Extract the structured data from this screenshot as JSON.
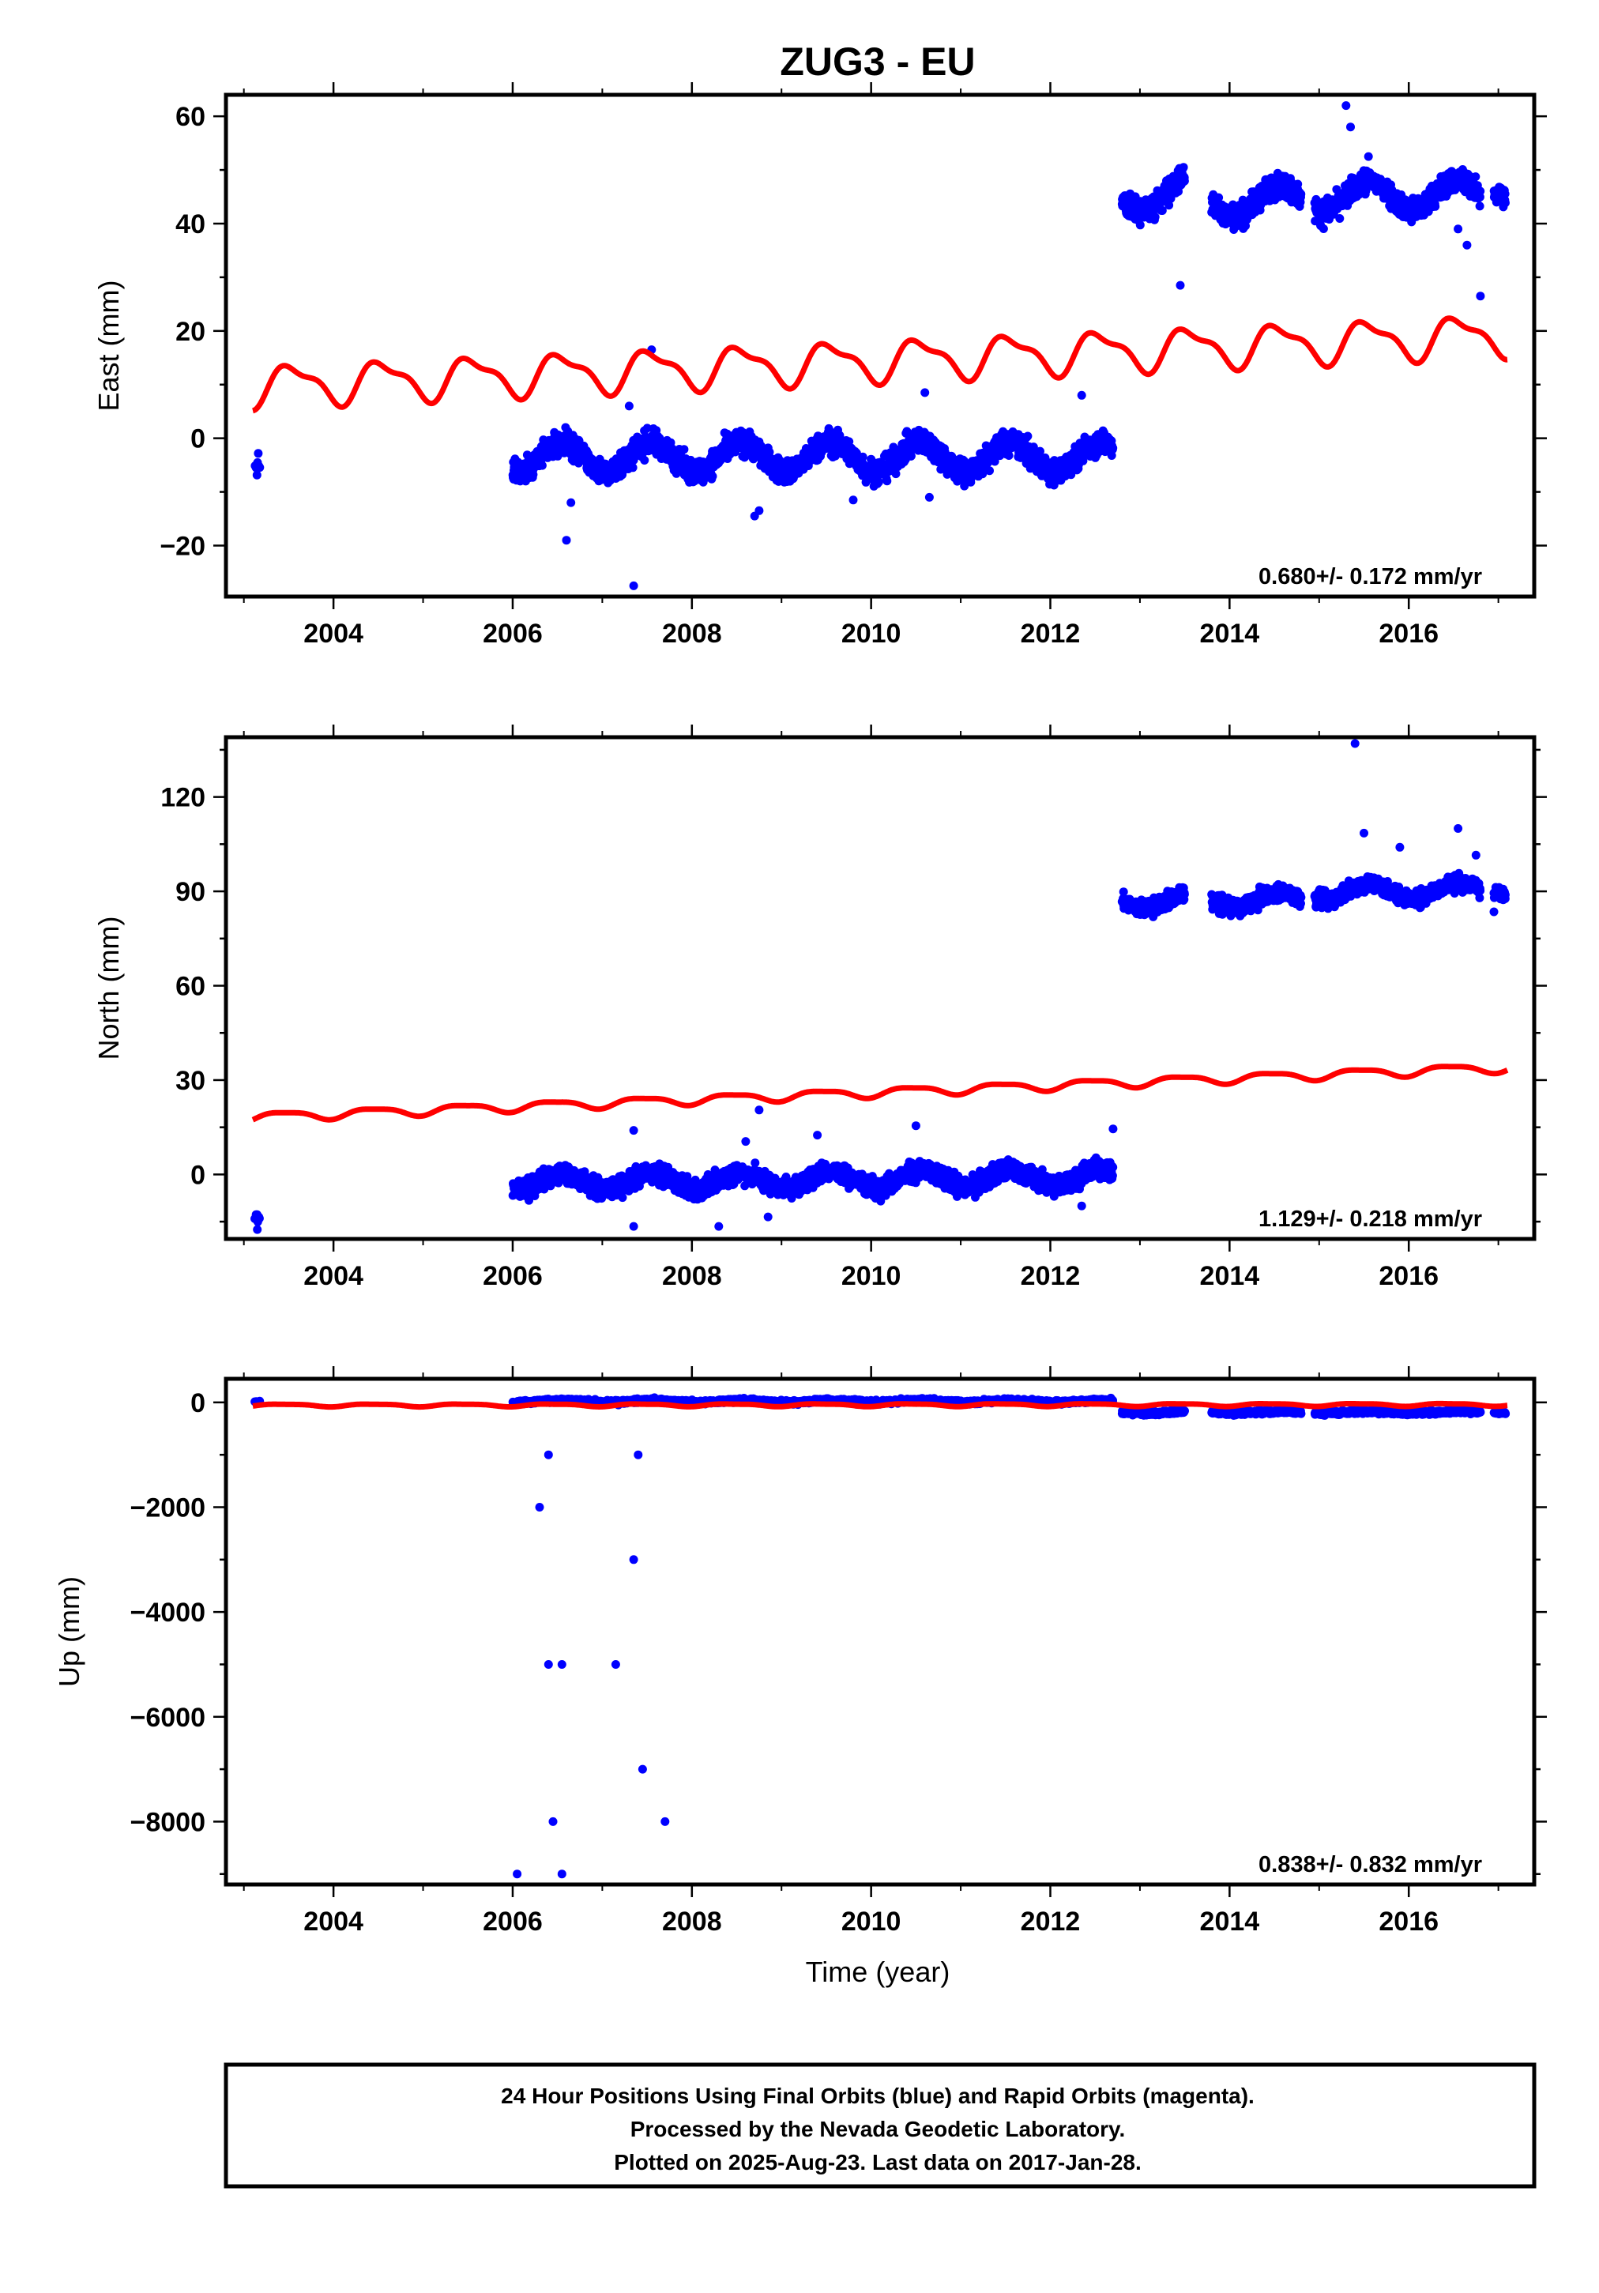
{
  "chart_data": {
    "title": "ZUG3 - EU",
    "xlabel": "Time (year)",
    "x_ticks": [
      2004,
      2006,
      2008,
      2010,
      2012,
      2014,
      2016
    ],
    "xlim": [
      2002.8,
      2017.4
    ],
    "colors": {
      "observations": "#0000ff",
      "model": "#ff0000"
    },
    "panels": [
      {
        "key": "east",
        "type": "scatter",
        "ylabel": "East (mm)",
        "ylim": [
          -29.5,
          64
        ],
        "yticks": [
          -20,
          0,
          20,
          40,
          60
        ],
        "rate_label": "0.680+/- 0.172 mm/yr",
        "model": {
          "start": 2003.1,
          "end": 2017.1,
          "y0": 9.7,
          "slope": 0.68,
          "annual_amp": 3.5,
          "annual_phase_year": 0.3,
          "semi_amp": 1.3,
          "semi_phase_year": 0.25,
          "jumps": []
        },
        "segments": [
          {
            "start": 2003.12,
            "end": 2003.18,
            "base": -4.3,
            "slope": 0,
            "amp": 1,
            "noise": 1.2,
            "count": 8
          },
          {
            "start": 2006.0,
            "end": 2012.7,
            "base": -3.5,
            "slope": 0,
            "amp": 2.8,
            "noise": 1.6,
            "count": 2200
          },
          {
            "start": 2012.8,
            "end": 2013.5,
            "base": 44,
            "slope": 3.5,
            "amp": 2.5,
            "noise": 1.6,
            "count": 260
          },
          {
            "start": 2013.8,
            "end": 2014.8,
            "base": 44,
            "slope": 0.5,
            "amp": 2.8,
            "noise": 1.6,
            "count": 330
          },
          {
            "start": 2014.95,
            "end": 2016.8,
            "base": 45,
            "slope": 0.3,
            "amp": 2.8,
            "noise": 1.6,
            "count": 600
          },
          {
            "start": 2016.95,
            "end": 2017.08,
            "base": 46.5,
            "slope": 0,
            "amp": 1,
            "noise": 1.4,
            "count": 40
          }
        ],
        "outliers": [
          [
            2006.6,
            -19
          ],
          [
            2007.35,
            -27.5
          ],
          [
            2007.55,
            16.5
          ],
          [
            2008.7,
            -14.5
          ],
          [
            2008.75,
            -13.5
          ],
          [
            2006.65,
            -12
          ],
          [
            2010.65,
            -11
          ],
          [
            2009.8,
            -11.5
          ],
          [
            2013.45,
            28.5
          ],
          [
            2015.3,
            62
          ],
          [
            2015.35,
            58
          ],
          [
            2016.65,
            36
          ],
          [
            2016.8,
            26.5
          ],
          [
            2016.55,
            39
          ],
          [
            2010.6,
            8.5
          ],
          [
            2012.35,
            8
          ],
          [
            2007.3,
            6
          ],
          [
            2015.55,
            52.5
          ]
        ]
      },
      {
        "key": "north",
        "type": "scatter",
        "ylabel": "North (mm)",
        "ylim": [
          -20.5,
          139
        ],
        "yticks": [
          0,
          30,
          60,
          90,
          120
        ],
        "rate_label": "1.129+/- 0.218 mm/yr",
        "model": {
          "start": 2003.1,
          "end": 2017.1,
          "y0": 18.2,
          "slope": 1.129,
          "annual_amp": 1.4,
          "annual_phase_year": 0.2,
          "semi_amp": 0.4,
          "semi_phase_year": 0.1,
          "jumps": []
        },
        "segments": [
          {
            "start": 2003.12,
            "end": 2003.18,
            "base": -13.5,
            "slope": 0,
            "amp": 0.5,
            "noise": 1.2,
            "count": 8
          },
          {
            "start": 2006.0,
            "end": 2012.7,
            "base": -2.5,
            "slope": 0.25,
            "amp": 2.5,
            "noise": 2.2,
            "count": 2200
          },
          {
            "start": 2012.8,
            "end": 2013.5,
            "base": 87,
            "slope": 0,
            "amp": 2.5,
            "noise": 1.8,
            "count": 260
          },
          {
            "start": 2013.8,
            "end": 2014.8,
            "base": 87,
            "slope": 0.5,
            "amp": 2.5,
            "noise": 1.8,
            "count": 330
          },
          {
            "start": 2014.95,
            "end": 2016.8,
            "base": 89.5,
            "slope": 0.6,
            "amp": 2.5,
            "noise": 1.8,
            "count": 600
          },
          {
            "start": 2016.95,
            "end": 2017.08,
            "base": 90,
            "slope": 0,
            "amp": 1,
            "noise": 1.5,
            "count": 40
          }
        ],
        "outliers": [
          [
            2003.15,
            -17.5
          ],
          [
            2007.35,
            -16.5
          ],
          [
            2008.3,
            -16.5
          ],
          [
            2008.75,
            20.5
          ],
          [
            2008.6,
            10.5
          ],
          [
            2007.35,
            14
          ],
          [
            2010.5,
            15.5
          ],
          [
            2012.7,
            14.5
          ],
          [
            2015.4,
            137
          ],
          [
            2015.5,
            108.5
          ],
          [
            2015.9,
            104
          ],
          [
            2016.55,
            110
          ],
          [
            2016.75,
            101.5
          ],
          [
            2016.95,
            83.5
          ],
          [
            2008.85,
            -13.5
          ],
          [
            2009.4,
            12.5
          ],
          [
            2012.35,
            -10
          ]
        ]
      },
      {
        "key": "up",
        "type": "scatter",
        "ylabel": "Up (mm)",
        "ylim": [
          -9200,
          450
        ],
        "yticks": [
          -8000,
          -6000,
          -4000,
          -2000,
          0
        ],
        "rate_label": "0.838+/- 0.832 mm/yr",
        "model": {
          "start": 2003.1,
          "end": 2017.1,
          "y0": -55,
          "slope": 0.838,
          "annual_amp": 25,
          "annual_phase_year": 0.2,
          "semi_amp": 8,
          "semi_phase_year": 0.1,
          "jumps": []
        },
        "segments": [
          {
            "start": 2003.12,
            "end": 2003.18,
            "base": 20,
            "slope": 0,
            "amp": 5,
            "noise": 10,
            "count": 6
          },
          {
            "start": 2006.0,
            "end": 2012.7,
            "base": 20,
            "slope": 0,
            "amp": 20,
            "noise": 25,
            "count": 2000
          },
          {
            "start": 2012.8,
            "end": 2013.5,
            "base": -190,
            "slope": 0,
            "amp": 15,
            "noise": 25,
            "count": 260
          },
          {
            "start": 2013.8,
            "end": 2014.8,
            "base": -190,
            "slope": 0,
            "amp": 15,
            "noise": 25,
            "count": 330
          },
          {
            "start": 2014.95,
            "end": 2016.8,
            "base": -190,
            "slope": 0,
            "amp": 15,
            "noise": 25,
            "count": 600
          },
          {
            "start": 2016.95,
            "end": 2017.08,
            "base": -190,
            "slope": 0,
            "amp": 5,
            "noise": 20,
            "count": 40
          }
        ],
        "outliers": [
          [
            2006.05,
            -9000
          ],
          [
            2006.3,
            -2000
          ],
          [
            2006.4,
            -1000
          ],
          [
            2006.4,
            -5000
          ],
          [
            2006.45,
            -8000
          ],
          [
            2006.55,
            -5000
          ],
          [
            2006.55,
            -9000
          ],
          [
            2007.15,
            -5000
          ],
          [
            2007.35,
            -3000
          ],
          [
            2007.4,
            -1000
          ],
          [
            2007.45,
            -7000
          ],
          [
            2007.7,
            -8000
          ]
        ]
      }
    ],
    "footer": [
      "24 Hour Positions Using Final Orbits (blue) and Rapid Orbits (magenta).",
      "Processed by the Nevada Geodetic Laboratory.",
      "Plotted on 2025-Aug-23. Last data on 2017-Jan-28."
    ]
  }
}
